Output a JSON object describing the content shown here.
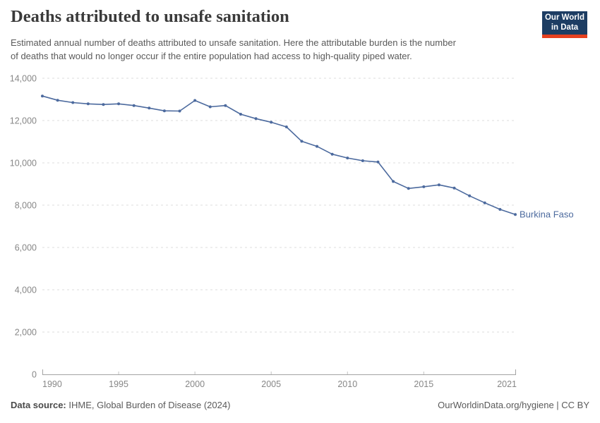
{
  "header": {
    "title": "Deaths attributed to unsafe sanitation",
    "subtitle_line1": "Estimated annual number of deaths attributed to unsafe sanitation. Here the attributable burden is the number",
    "subtitle_line2": "of deaths that would no longer occur if the entire population had access to high-quality piped water.",
    "logo_line1": "Our World",
    "logo_line2": "in Data",
    "logo_bg_color": "#1d3d63",
    "logo_stripe_color": "#e6401f"
  },
  "chart_data": {
    "type": "line",
    "title": "Deaths attributed to unsafe sanitation",
    "entity": "Burkina Faso",
    "x": [
      1990,
      1991,
      1992,
      1993,
      1994,
      1995,
      1996,
      1997,
      1998,
      1999,
      2000,
      2001,
      2002,
      2003,
      2004,
      2005,
      2006,
      2007,
      2008,
      2009,
      2010,
      2011,
      2012,
      2013,
      2014,
      2015,
      2016,
      2017,
      2018,
      2019,
      2020,
      2021
    ],
    "values": [
      13160,
      12960,
      12850,
      12790,
      12760,
      12790,
      12710,
      12590,
      12460,
      12450,
      12950,
      12650,
      12710,
      12300,
      12090,
      11920,
      11700,
      11020,
      10780,
      10410,
      10230,
      10100,
      10040,
      9120,
      8790,
      8870,
      8960,
      8810,
      8440,
      8110,
      7800,
      7560
    ],
    "xlabel": "",
    "ylabel": "",
    "ylim": [
      0,
      14000
    ],
    "yticks": [
      0,
      2000,
      4000,
      6000,
      8000,
      10000,
      12000,
      14000
    ],
    "xticks": [
      1990,
      1995,
      2000,
      2005,
      2010,
      2015,
      2021
    ],
    "grid": "horizontal-dashed",
    "legend": "entity-label-at-line-end",
    "line_color": "#4c6a9e",
    "axis_color": "#a3a3a3",
    "minor_tick_color": "#c2c2c2",
    "grid_color": "#dedede",
    "tick_label_color": "#878787"
  },
  "footer": {
    "source_label": "Data source:",
    "source_text": " IHME, Global Burden of Disease (2024)",
    "right_text": "OurWorldinData.org/hygiene | CC BY"
  }
}
